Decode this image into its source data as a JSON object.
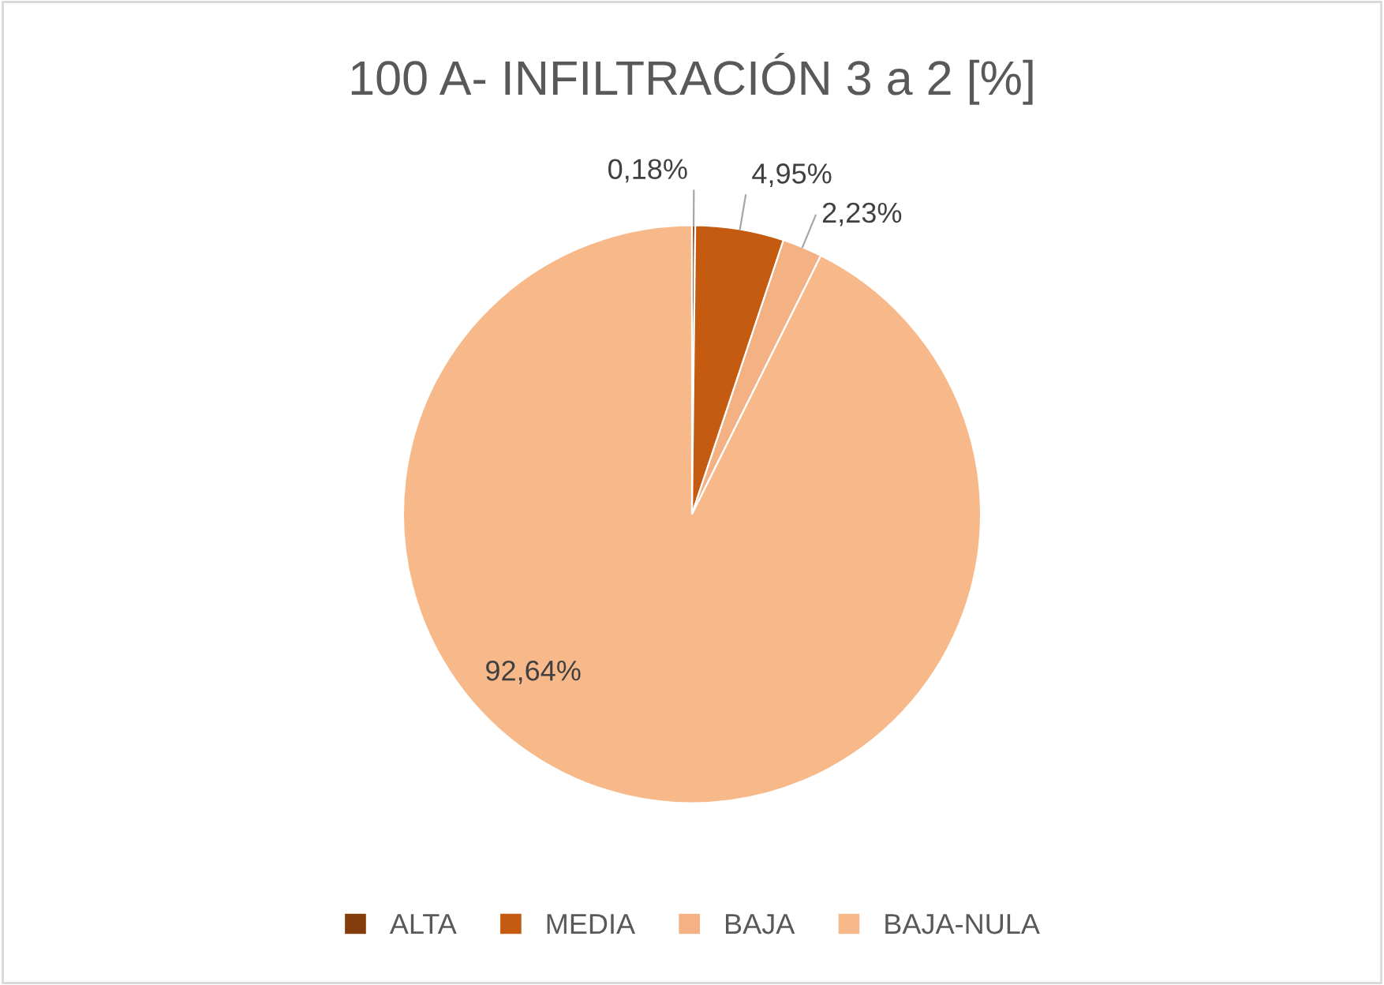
{
  "chart_data": {
    "type": "pie",
    "title": "100 A- INFILTRACIÓN 3 a 2 [%]",
    "categories": [
      "ALTA",
      "MEDIA",
      "BAJA",
      "BAJA-NULA"
    ],
    "values": [
      0.18,
      4.95,
      2.23,
      92.64
    ],
    "value_labels": [
      "0,18%",
      "4,95%",
      "2,23%",
      "92,64%"
    ],
    "colors": [
      "#843c0c",
      "#c55a11",
      "#f4b183",
      "#f8b98a"
    ],
    "legend": "bottom"
  }
}
